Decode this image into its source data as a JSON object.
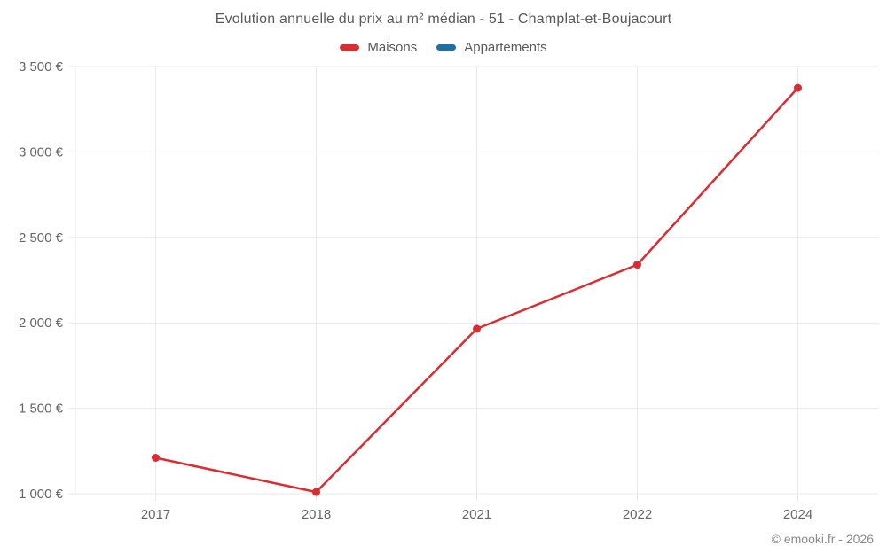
{
  "title": "Evolution annuelle du prix au m² médian - 51 - Champlat-et-Boujacourt",
  "legend": {
    "items": [
      {
        "label": "Maisons",
        "color": "#dc2b31"
      },
      {
        "label": "Appartements",
        "color": "#1d6fa5"
      }
    ]
  },
  "copyright": "© emooki.fr - 2026",
  "theme": {
    "background": "#ffffff",
    "grid": "#e9e9e9",
    "axis_text": "#666666",
    "title_text": "#595959",
    "legend_text": "#595959",
    "copyright_text": "#8a8a8a"
  },
  "chart_data": {
    "type": "line",
    "title": "Evolution annuelle du prix au m² médian - 51 - Champlat-et-Boujacourt",
    "categories": [
      "2017",
      "2018",
      "2021",
      "2022",
      "2024"
    ],
    "series": [
      {
        "name": "Maisons",
        "color": "#dc2b31",
        "values": [
          1210,
          1010,
          1965,
          2340,
          3375
        ]
      },
      {
        "name": "Appartements",
        "color": "#1d6fa5",
        "values": []
      }
    ],
    "xlabel": "",
    "ylabel": "",
    "unit": "€",
    "ylim": [
      1000,
      3500
    ],
    "ytick_step": 500,
    "ytick_labels": [
      "1 000 €",
      "1 500 €",
      "2 000 €",
      "2 500 €",
      "3 000 €",
      "3 500 €"
    ],
    "grid": true,
    "legend_position": "top",
    "annotations": [
      "© emooki.fr - 2026"
    ]
  }
}
